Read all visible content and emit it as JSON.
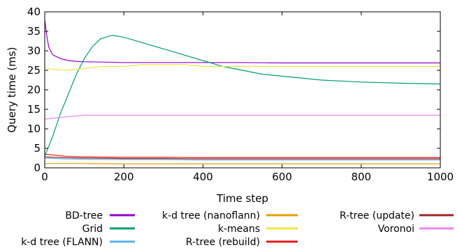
{
  "chart_data": {
    "type": "line",
    "xlabel": "Time step",
    "ylabel": "Query time (ms)",
    "xlim": [
      0,
      1000
    ],
    "ylim": [
      0,
      40
    ],
    "xticks": [
      0,
      200,
      400,
      600,
      800,
      1000
    ],
    "yticks": [
      0,
      5,
      10,
      15,
      20,
      25,
      30,
      35,
      40
    ],
    "grid": false,
    "legend_position": "bottom",
    "series": [
      {
        "name": "BD-tree",
        "color": "#9400d3",
        "x": [
          0,
          5,
          10,
          20,
          30,
          40,
          60,
          80,
          100,
          150,
          200,
          300,
          400,
          500,
          600,
          700,
          800,
          900,
          1000
        ],
        "y": [
          38,
          34,
          31,
          29,
          28.5,
          28,
          27.5,
          27.3,
          27.2,
          27.1,
          27,
          27,
          27,
          27,
          26.9,
          26.9,
          26.9,
          26.9,
          26.9
        ]
      },
      {
        "name": "Grid",
        "color": "#009e73",
        "x": [
          0,
          20,
          40,
          60,
          80,
          100,
          120,
          140,
          170,
          200,
          250,
          300,
          350,
          400,
          450,
          500,
          550,
          600,
          700,
          800,
          900,
          1000
        ],
        "y": [
          3,
          8,
          14,
          19,
          24,
          28,
          31,
          33,
          34,
          33.5,
          32,
          30.5,
          29,
          27.5,
          26,
          25,
          24,
          23.5,
          22.5,
          22,
          21.7,
          21.5
        ]
      },
      {
        "name": "k-d tree (FLANN)",
        "color": "#56b4e9",
        "x": [
          0,
          50,
          100,
          200,
          300,
          400,
          500,
          600,
          700,
          800,
          900,
          1000
        ],
        "y": [
          2.5,
          2.3,
          2.2,
          2.1,
          2.1,
          2,
          2,
          2,
          2,
          2,
          2,
          2
        ]
      },
      {
        "name": "k-d tree (nanoflann)",
        "color": "#e69f00",
        "x": [
          0,
          100,
          200,
          300,
          400,
          500,
          600,
          700,
          800,
          900,
          1000
        ],
        "y": [
          1.1,
          1.1,
          1,
          1,
          1,
          1,
          1,
          1,
          1,
          1,
          1
        ]
      },
      {
        "name": "k-means",
        "color": "#f0e442",
        "x": [
          0,
          50,
          100,
          150,
          200,
          250,
          300,
          350,
          400,
          500,
          600,
          700,
          800,
          900,
          1000
        ],
        "y": [
          25.5,
          25,
          25.5,
          26,
          26,
          26.5,
          26.5,
          26.5,
          26,
          26,
          26,
          26,
          26,
          26,
          26
        ]
      },
      {
        "name": "R-tree (rebuild)",
        "color": "#e41a1c",
        "x": [
          0,
          50,
          100,
          200,
          300,
          400,
          500,
          600,
          700,
          800,
          900,
          1000
        ],
        "y": [
          3.5,
          3,
          2.8,
          2.7,
          2.7,
          2.6,
          2.6,
          2.6,
          2.6,
          2.6,
          2.6,
          2.6
        ]
      },
      {
        "name": "R-tree (update)",
        "color": "#a0262a",
        "x": [
          0,
          50,
          100,
          200,
          300,
          400,
          500,
          600,
          700,
          800,
          900,
          1000
        ],
        "y": [
          2.8,
          2.6,
          2.5,
          2.4,
          2.4,
          2.3,
          2.3,
          2.3,
          2.3,
          2.3,
          2.3,
          2.3
        ]
      },
      {
        "name": "Voronoi",
        "color": "#ee82ee",
        "x": [
          0,
          50,
          100,
          200,
          300,
          400,
          500,
          600,
          700,
          800,
          900,
          1000
        ],
        "y": [
          12.5,
          13,
          13.5,
          13.5,
          13.5,
          13.5,
          13.5,
          13.5,
          13.5,
          13.5,
          13.5,
          13.5
        ]
      }
    ]
  }
}
